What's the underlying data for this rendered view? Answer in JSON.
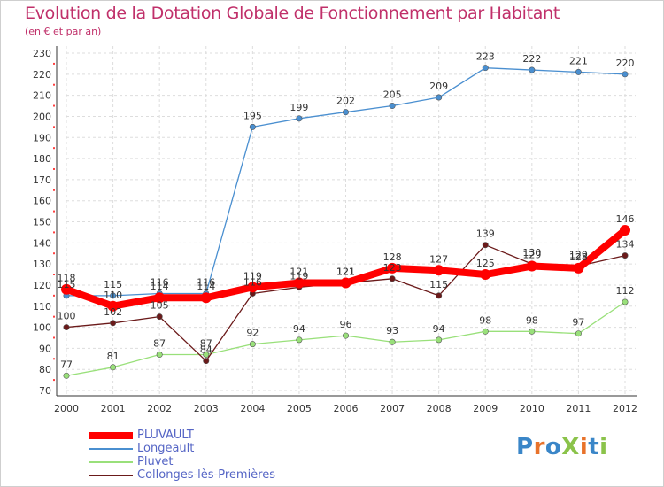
{
  "title": "Evolution de la Dotation Globale de Fonctionnement par Habitant",
  "subtitle": "(en € et par an)",
  "chart_data": {
    "type": "line",
    "title": "Evolution de la Dotation Globale de Fonctionnement par Habitant",
    "subtitle": "(en € et par an)",
    "xlabel": "",
    "ylabel": "",
    "categories": [
      "2000",
      "2001",
      "2002",
      "2003",
      "2004",
      "2005",
      "2006",
      "2007",
      "2008",
      "2009",
      "2010",
      "2011",
      "2012"
    ],
    "ylim": [
      70,
      230
    ],
    "yticks": [
      70,
      80,
      90,
      100,
      110,
      120,
      130,
      140,
      150,
      160,
      170,
      180,
      190,
      200,
      210,
      220,
      230
    ],
    "grid": true,
    "legend_position": "bottom-left",
    "series": [
      {
        "name": "PLUVAULT",
        "color": "#ff0000",
        "emphasis": true,
        "values": [
          118,
          110,
          114,
          114,
          119,
          121,
          121,
          128,
          127,
          125,
          129,
          128,
          146
        ]
      },
      {
        "name": "Longeault",
        "color": "#4a8fd0",
        "values": [
          115,
          115,
          116,
          116,
          195,
          199,
          202,
          205,
          209,
          223,
          222,
          221,
          220
        ]
      },
      {
        "name": "Pluvet",
        "color": "#99e07a",
        "values": [
          77,
          81,
          87,
          87,
          92,
          94,
          96,
          93,
          94,
          98,
          98,
          97,
          112
        ]
      },
      {
        "name": "Collonges-lès-Premières",
        "color": "#6b1a1a",
        "values": [
          100,
          102,
          105,
          84,
          116,
          119,
          121,
          123,
          115,
          139,
          130,
          129,
          134
        ]
      }
    ],
    "point_labels": [
      {
        "series": "Longeault",
        "values": [
          "115",
          "115",
          "116",
          "116",
          "195",
          "199",
          "202",
          "205",
          "209",
          "223",
          "222",
          "221",
          "220"
        ]
      },
      {
        "series": "Pluvet",
        "values": [
          "77",
          "81",
          "87",
          "87",
          "92",
          "94",
          "96",
          "93",
          "94",
          "98",
          "98",
          "97",
          "112"
        ]
      },
      {
        "series": "Collonges-lès-Premières",
        "values": [
          "100",
          "102",
          "105",
          "84",
          "116",
          "119",
          "121",
          "123",
          "115",
          "139",
          "130",
          "129",
          "134"
        ]
      },
      {
        "series": "PLUVAULT",
        "values": [
          "118",
          "110",
          "114",
          "114",
          "119",
          "121",
          "121",
          "128",
          "127",
          "125",
          "129",
          "128",
          "146"
        ]
      }
    ]
  },
  "legend": {
    "items": [
      {
        "label": "PLUVAULT",
        "color": "#ff0000"
      },
      {
        "label": "Longeault",
        "color": "#4a8fd0"
      },
      {
        "label": "Pluvet",
        "color": "#99e07a"
      },
      {
        "label": "Collonges-lès-Premières",
        "color": "#6b1a1a"
      }
    ]
  },
  "logo": {
    "text": "ProXiti",
    "letters": [
      {
        "ch": "P",
        "color": "#3a86c8"
      },
      {
        "ch": "r",
        "color": "#e8722a"
      },
      {
        "ch": "o",
        "color": "#3a86c8"
      },
      {
        "ch": "X",
        "color": "#8bc34a"
      },
      {
        "ch": "i",
        "color": "#e8722a"
      },
      {
        "ch": "t",
        "color": "#3a86c8"
      },
      {
        "ch": "i",
        "color": "#8bc34a"
      }
    ]
  }
}
